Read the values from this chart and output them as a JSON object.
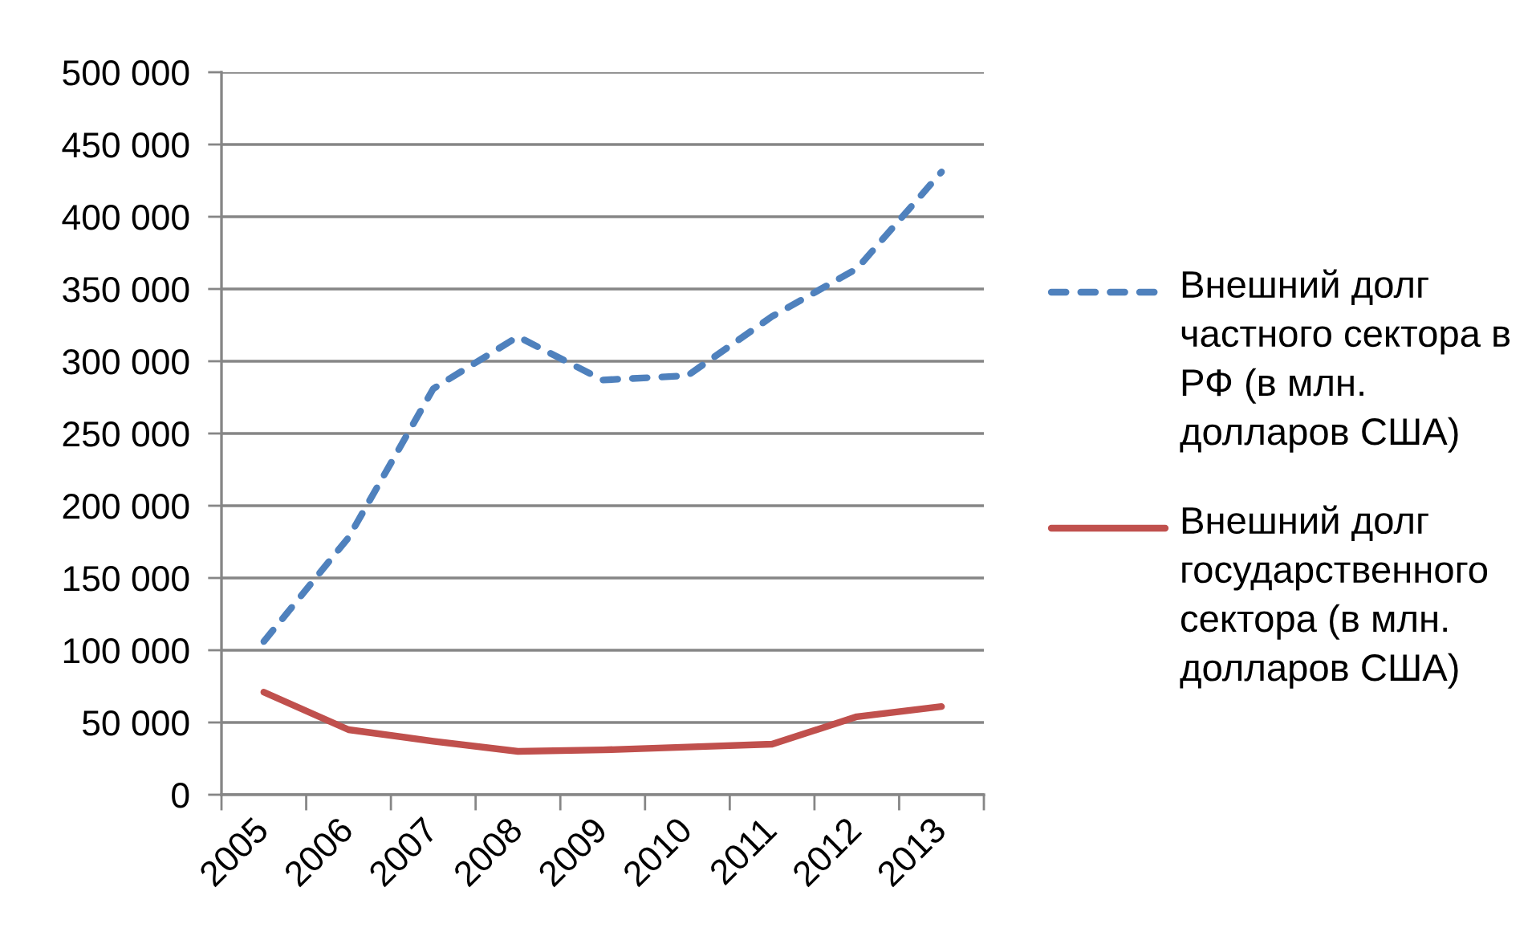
{
  "chart_data": {
    "type": "line",
    "categories": [
      "2005",
      "2006",
      "2007",
      "2008",
      "2009",
      "2010",
      "2011",
      "2012",
      "2013"
    ],
    "series": [
      {
        "name": "Внешний долг частного сектора в РФ (в млн. долларов США)",
        "color": "#4f81bd",
        "line_style": "dashed",
        "values": [
          106000,
          178000,
          281000,
          317000,
          287000,
          290000,
          331000,
          364000,
          431000
        ]
      },
      {
        "name": "Внешний долг государственного сектора (в млн. долларов США)",
        "color": "#c0504d",
        "line_style": "solid",
        "values": [
          71000,
          45000,
          37000,
          30000,
          31000,
          33000,
          35000,
          54000,
          61000
        ]
      }
    ],
    "ylim": [
      0,
      500000
    ],
    "yticks": [
      0,
      {
        "value": 50000,
        "label": "50 000"
      },
      {
        "value": 100000,
        "label": "100 000"
      },
      {
        "value": 150000,
        "label": "150 000"
      },
      {
        "value": 200000,
        "label": "200 000"
      },
      {
        "value": 250000,
        "label": "250 000"
      },
      {
        "value": 300000,
        "label": "300 000"
      },
      {
        "value": 350000,
        "label": "350 000"
      },
      {
        "value": 400000,
        "label": "400 000"
      },
      {
        "value": 450000,
        "label": "450 000"
      },
      {
        "value": 500000,
        "label": "500 000"
      }
    ],
    "grid": "y",
    "legend": "right"
  }
}
